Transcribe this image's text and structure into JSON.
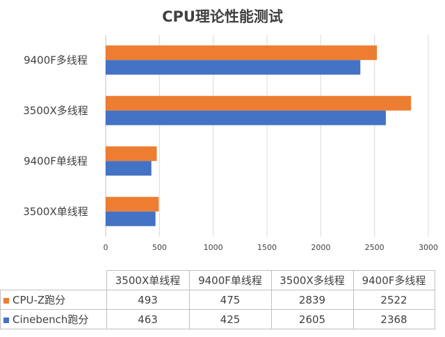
{
  "colors": {
    "cpuz": "#ED7D31",
    "cinebench": "#4472C4",
    "grid": "#D9D9D9",
    "axis": "#BFBFBF",
    "text": "#404040"
  },
  "chart_data": {
    "type": "bar",
    "orientation": "horizontal",
    "title": "CPU理论性能测试",
    "categories": [
      "3500X单线程",
      "9400F单线程",
      "3500X多线程",
      "9400F多线程"
    ],
    "series": [
      {
        "name": "CPU-Z跑分",
        "values": [
          493,
          475,
          2839,
          2522
        ],
        "color": "#ED7D31"
      },
      {
        "name": "Cinebench跑分",
        "values": [
          463,
          425,
          2605,
          2368
        ],
        "color": "#4472C4"
      }
    ],
    "xlim": [
      0,
      3000
    ],
    "xticks": [
      0,
      500,
      1000,
      1500,
      2000,
      2500,
      3000
    ],
    "grid": true,
    "legend": "data-table",
    "data_table": true
  }
}
